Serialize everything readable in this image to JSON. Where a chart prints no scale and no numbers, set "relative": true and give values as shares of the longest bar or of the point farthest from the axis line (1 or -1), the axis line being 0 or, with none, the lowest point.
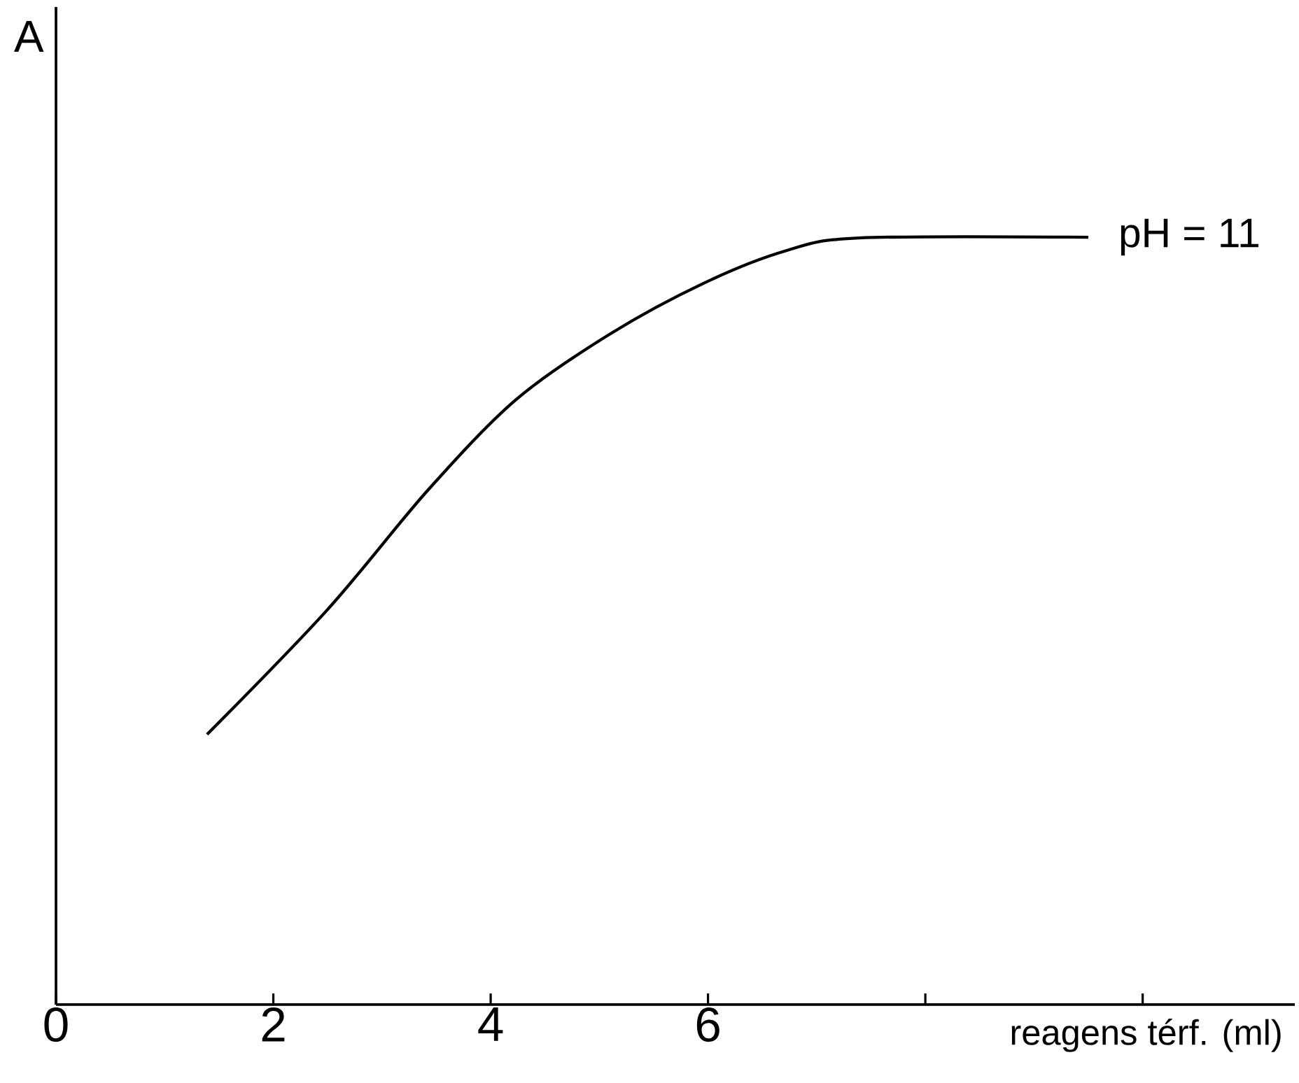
{
  "chart_data": {
    "type": "line",
    "xlabel": "reagens térf. (ml)",
    "ylabel": "A",
    "relative": true,
    "marker": "none",
    "x": [
      1.39,
      2.5,
      3.42,
      4.23,
      5.1,
      5.96,
      6.71,
      7.39,
      9.5
    ],
    "series": [
      {
        "name": "pH = 11",
        "color": "#000000",
        "values": [
          0.352,
          0.515,
          0.67,
          0.788,
          0.874,
          0.94,
          0.982,
          0.999,
          1.0
        ]
      }
    ],
    "xlim": [
      0,
      11.4
    ],
    "xticks": [
      0,
      2,
      4,
      6,
      {
        "value": 8,
        "label": null
      },
      {
        "value": 10,
        "label": null
      }
    ]
  }
}
